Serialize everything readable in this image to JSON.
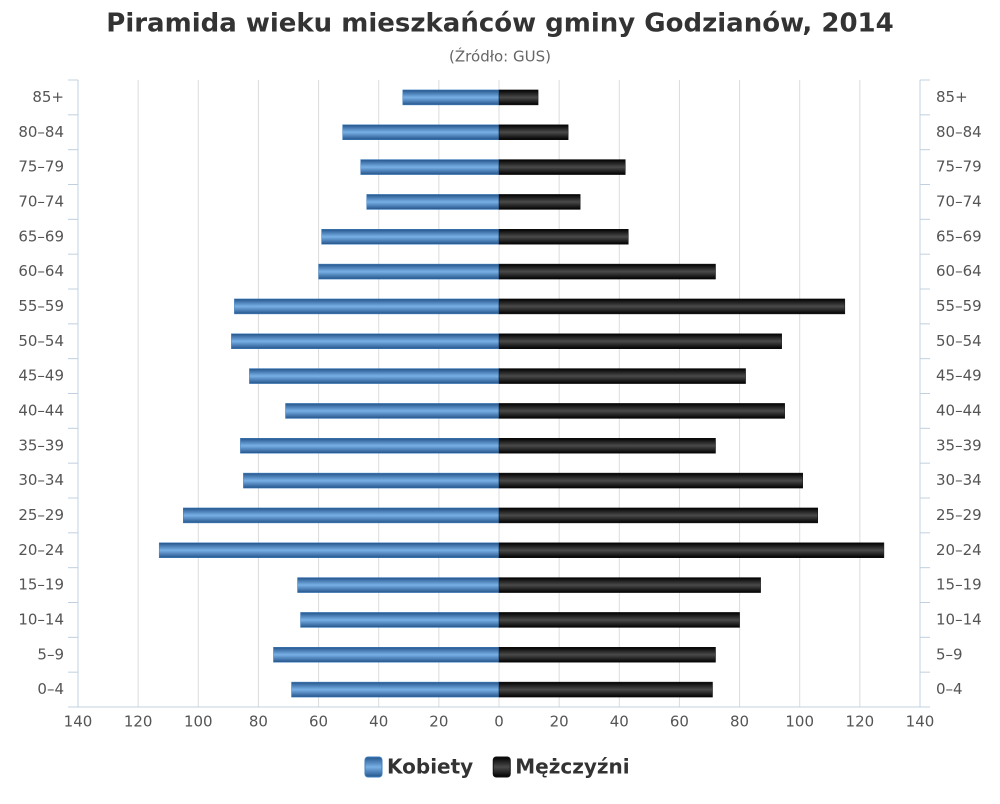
{
  "chart_data": {
    "type": "pyramid",
    "title": "Piramida wieku mieszkańców gminy Godzianów, 2014",
    "subtitle": "(Źródło: GUS)",
    "categories": [
      "85+",
      "80–84",
      "75–79",
      "70–74",
      "65–69",
      "60–64",
      "55–59",
      "50–54",
      "45–49",
      "40–44",
      "35–39",
      "30–34",
      "25–29",
      "20–24",
      "15–19",
      "10–14",
      "5–9",
      "0–4"
    ],
    "series": [
      {
        "name": "Kobiety",
        "color": "#3f7fc0",
        "side": "left",
        "values": [
          32,
          52,
          46,
          44,
          59,
          60,
          88,
          89,
          83,
          71,
          86,
          85,
          105,
          113,
          67,
          66,
          75,
          69
        ]
      },
      {
        "name": "Mężczyźni",
        "color": "#111111",
        "side": "right",
        "values": [
          13,
          23,
          42,
          27,
          43,
          72,
          115,
          94,
          82,
          95,
          72,
          101,
          106,
          128,
          87,
          80,
          72,
          71
        ]
      }
    ],
    "xlim": [
      -140,
      140
    ],
    "xticks": [
      {
        "value": -140,
        "label": "140"
      },
      {
        "value": -120,
        "label": "120"
      },
      {
        "value": -100,
        "label": "100"
      },
      {
        "value": -80,
        "label": "80"
      },
      {
        "value": -60,
        "label": "60"
      },
      {
        "value": -40,
        "label": "40"
      },
      {
        "value": -20,
        "label": "20"
      },
      0,
      20,
      40,
      60,
      80,
      100,
      120,
      140
    ],
    "grid": true,
    "legend": "bottom"
  }
}
